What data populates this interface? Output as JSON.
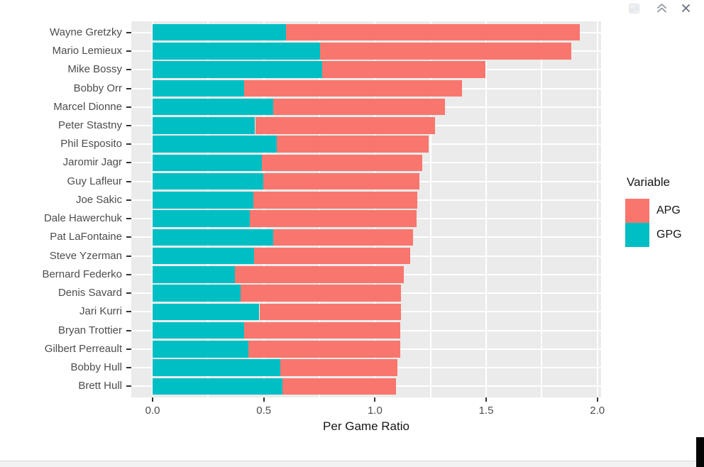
{
  "toolbar": {
    "icons": [
      {
        "name": "export-plot-icon",
        "state": "disabled",
        "shape": "pale-picture-file"
      },
      {
        "name": "collapse-pane-icon",
        "state": "enabled",
        "shape": "double-chevron-up"
      },
      {
        "name": "close-icon",
        "state": "enabled",
        "shape": "x-cross"
      }
    ]
  },
  "chart_data": {
    "type": "bar",
    "orientation": "horizontal",
    "stacked": true,
    "title": "",
    "xlabel": "Per Game Ratio",
    "ylabel": "",
    "legend_title": "Variable",
    "legend_position": "right",
    "legend_order": [
      "APG",
      "GPG"
    ],
    "categories": [
      "Wayne Gretzky",
      "Mario Lemieux",
      "Mike Bossy",
      "Bobby Orr",
      "Marcel Dionne",
      "Peter Stastny",
      "Phil Esposito",
      "Jaromir Jagr",
      "Guy Lafleur",
      "Joe Sakic",
      "Dale Hawerchuk",
      "Pat LaFontaine",
      "Steve Yzerman",
      "Bernard Federko",
      "Denis Savard",
      "Jari Kurri",
      "Bryan Trottier",
      "Gilbert Perreault",
      "Bobby Hull",
      "Brett Hull"
    ],
    "series": [
      {
        "name": "GPG",
        "color": "#00BFC4",
        "values": [
          0.601,
          0.754,
          0.762,
          0.411,
          0.542,
          0.461,
          0.559,
          0.49,
          0.497,
          0.454,
          0.436,
          0.541,
          0.457,
          0.369,
          0.395,
          0.48,
          0.41,
          0.43,
          0.574,
          0.584
        ]
      },
      {
        "name": "APG",
        "color": "#F8766D",
        "values": [
          1.32,
          1.129,
          0.735,
          0.982,
          0.772,
          0.808,
          0.681,
          0.724,
          0.704,
          0.737,
          0.75,
          0.63,
          0.702,
          0.761,
          0.723,
          0.637,
          0.704,
          0.683,
          0.527,
          0.512
        ]
      }
    ],
    "x_ticks": [
      0.0,
      0.5,
      1.0,
      1.5,
      2.0
    ],
    "x_tick_labels": [
      "0.0",
      "0.5",
      "1.0",
      "1.5",
      "2.0"
    ],
    "x_minor_step": 0.25,
    "xlim": [
      -0.096,
      2.017
    ],
    "grid": true,
    "grid_color": "#FFFFFF",
    "panel_bg": "#EBEBEB",
    "axis_text_color": "#4D4D4D",
    "bar_width_fraction": 0.9
  }
}
